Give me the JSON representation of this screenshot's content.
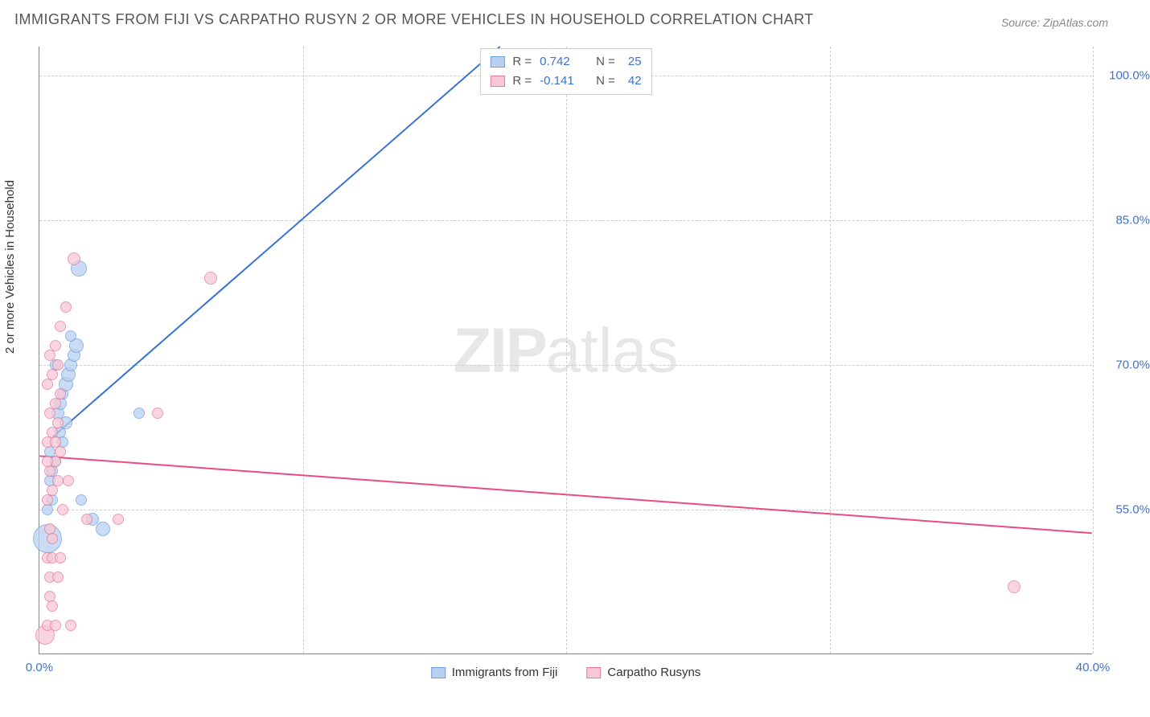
{
  "title": "IMMIGRANTS FROM FIJI VS CARPATHO RUSYN 2 OR MORE VEHICLES IN HOUSEHOLD CORRELATION CHART",
  "source": "Source: ZipAtlas.com",
  "watermark_bold": "ZIP",
  "watermark_rest": "atlas",
  "ylabel": "2 or more Vehicles in Household",
  "chart": {
    "type": "scatter",
    "xlim": [
      0,
      40
    ],
    "ylim": [
      40,
      103
    ],
    "x_ticks": [
      0,
      10,
      20,
      30,
      40
    ],
    "x_tick_labels": [
      "0.0%",
      "",
      "",
      "",
      "40.0%"
    ],
    "y_ticks": [
      55,
      70,
      85,
      100
    ],
    "y_tick_labels": [
      "55.0%",
      "70.0%",
      "85.0%",
      "100.0%"
    ],
    "background_color": "#ffffff",
    "grid_color": "#cccccc",
    "axis_color": "#888888",
    "tick_label_color": "#3973d4",
    "tick_label_fontsize": 15
  },
  "series": [
    {
      "key": "fiji",
      "label": "Immigrants from Fiji",
      "fill": "#b9d1ef",
      "stroke": "#6fa0e0",
      "line_color": "#3973d4",
      "R_label": "R =",
      "R": "0.742",
      "N_label": "N =",
      "N": "25",
      "trend": {
        "x1": 0.5,
        "y1": 62.5,
        "x2": 17.5,
        "y2": 103
      },
      "points": [
        {
          "x": 0.3,
          "y": 52,
          "r": 18
        },
        {
          "x": 0.4,
          "y": 58,
          "r": 7
        },
        {
          "x": 0.5,
          "y": 59,
          "r": 7
        },
        {
          "x": 0.6,
          "y": 60,
          "r": 7
        },
        {
          "x": 0.7,
          "y": 65,
          "r": 8
        },
        {
          "x": 0.8,
          "y": 66,
          "r": 8
        },
        {
          "x": 0.9,
          "y": 67,
          "r": 7
        },
        {
          "x": 1.0,
          "y": 68,
          "r": 9
        },
        {
          "x": 1.1,
          "y": 69,
          "r": 9
        },
        {
          "x": 1.2,
          "y": 70,
          "r": 8
        },
        {
          "x": 1.3,
          "y": 71,
          "r": 8
        },
        {
          "x": 1.4,
          "y": 72,
          "r": 9
        },
        {
          "x": 1.0,
          "y": 64,
          "r": 8
        },
        {
          "x": 0.8,
          "y": 63,
          "r": 7
        },
        {
          "x": 1.5,
          "y": 80,
          "r": 10
        },
        {
          "x": 2.4,
          "y": 53,
          "r": 9
        },
        {
          "x": 1.6,
          "y": 56,
          "r": 7
        },
        {
          "x": 3.8,
          "y": 65,
          "r": 7
        },
        {
          "x": 2.0,
          "y": 54,
          "r": 8
        },
        {
          "x": 0.5,
          "y": 56,
          "r": 7
        },
        {
          "x": 0.4,
          "y": 61,
          "r": 7
        },
        {
          "x": 0.6,
          "y": 70,
          "r": 7
        },
        {
          "x": 1.2,
          "y": 73,
          "r": 7
        },
        {
          "x": 0.3,
          "y": 55,
          "r": 7
        },
        {
          "x": 0.9,
          "y": 62,
          "r": 7
        }
      ]
    },
    {
      "key": "carpatho",
      "label": "Carpatho Rusyns",
      "fill": "#f6c8d6",
      "stroke": "#e77aa0",
      "line_color": "#e94b86",
      "R_label": "R =",
      "R": "-0.141",
      "N_label": "N =",
      "N": "42",
      "trend": {
        "x1": 0,
        "y1": 60.5,
        "x2": 40,
        "y2": 52.5
      },
      "points": [
        {
          "x": 0.2,
          "y": 42,
          "r": 12
        },
        {
          "x": 0.3,
          "y": 43,
          "r": 7
        },
        {
          "x": 0.6,
          "y": 43,
          "r": 7
        },
        {
          "x": 1.2,
          "y": 43,
          "r": 7
        },
        {
          "x": 0.4,
          "y": 48,
          "r": 7
        },
        {
          "x": 0.7,
          "y": 48,
          "r": 7
        },
        {
          "x": 0.3,
          "y": 50,
          "r": 7
        },
        {
          "x": 0.5,
          "y": 50,
          "r": 7
        },
        {
          "x": 0.8,
          "y": 50,
          "r": 7
        },
        {
          "x": 0.4,
          "y": 53,
          "r": 7
        },
        {
          "x": 1.8,
          "y": 54,
          "r": 7
        },
        {
          "x": 3.0,
          "y": 54,
          "r": 7
        },
        {
          "x": 0.3,
          "y": 56,
          "r": 7
        },
        {
          "x": 0.5,
          "y": 57,
          "r": 7
        },
        {
          "x": 0.7,
          "y": 58,
          "r": 7
        },
        {
          "x": 0.4,
          "y": 59,
          "r": 7
        },
        {
          "x": 0.6,
          "y": 60,
          "r": 7
        },
        {
          "x": 0.8,
          "y": 61,
          "r": 7
        },
        {
          "x": 0.3,
          "y": 62,
          "r": 7
        },
        {
          "x": 0.5,
          "y": 63,
          "r": 7
        },
        {
          "x": 0.7,
          "y": 64,
          "r": 7
        },
        {
          "x": 0.4,
          "y": 65,
          "r": 7
        },
        {
          "x": 4.5,
          "y": 65,
          "r": 7
        },
        {
          "x": 0.6,
          "y": 66,
          "r": 7
        },
        {
          "x": 0.8,
          "y": 67,
          "r": 7
        },
        {
          "x": 0.3,
          "y": 68,
          "r": 7
        },
        {
          "x": 0.5,
          "y": 69,
          "r": 7
        },
        {
          "x": 0.7,
          "y": 70,
          "r": 7
        },
        {
          "x": 0.4,
          "y": 71,
          "r": 7
        },
        {
          "x": 0.6,
          "y": 72,
          "r": 7
        },
        {
          "x": 0.8,
          "y": 74,
          "r": 7
        },
        {
          "x": 1.0,
          "y": 76,
          "r": 7
        },
        {
          "x": 1.3,
          "y": 81,
          "r": 8
        },
        {
          "x": 6.5,
          "y": 79,
          "r": 8
        },
        {
          "x": 0.4,
          "y": 46,
          "r": 7
        },
        {
          "x": 0.5,
          "y": 52,
          "r": 7
        },
        {
          "x": 0.9,
          "y": 55,
          "r": 7
        },
        {
          "x": 1.1,
          "y": 58,
          "r": 7
        },
        {
          "x": 0.3,
          "y": 60,
          "r": 7
        },
        {
          "x": 0.6,
          "y": 62,
          "r": 7
        },
        {
          "x": 37.0,
          "y": 47,
          "r": 8
        },
        {
          "x": 0.5,
          "y": 45,
          "r": 7
        }
      ]
    }
  ]
}
